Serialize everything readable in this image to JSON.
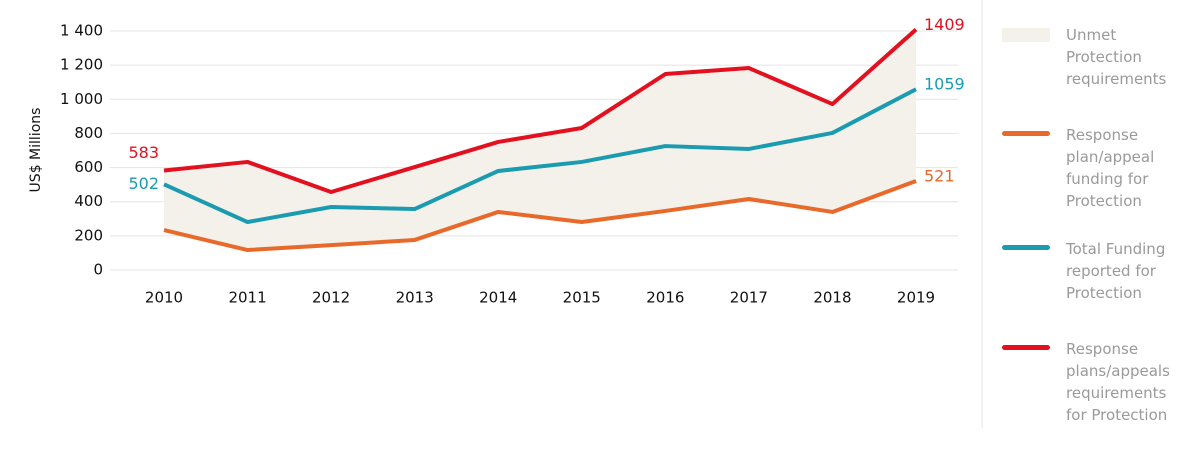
{
  "chart_data": {
    "type": "line",
    "y_label": "US$ Millions",
    "categories": [
      "2010",
      "2011",
      "2012",
      "2013",
      "2014",
      "2015",
      "2016",
      "2017",
      "2018",
      "2019"
    ],
    "area": {
      "name": "Unmet Protection requirements",
      "color": "#f4f1eb"
    },
    "series": [
      {
        "name": "Response plan/appeal funding for Protection",
        "color": "#e8692a",
        "values": [
          234,
          117,
          146,
          176,
          340,
          281,
          346,
          416,
          340,
          521
        ]
      },
      {
        "name": "Total Funding reported for Protection",
        "color": "#1b9bb0",
        "values": [
          502,
          281,
          369,
          357,
          580,
          633,
          726,
          709,
          803,
          1059
        ]
      },
      {
        "name": "Response plans/appeals requirements for Protection",
        "color": "#e3101f",
        "values": [
          583,
          633,
          457,
          603,
          750,
          832,
          1148,
          1183,
          972,
          1409
        ]
      }
    ],
    "ylim": [
      0,
      1400
    ],
    "yticks": [
      0,
      200,
      400,
      600,
      800,
      {
        "value": 1000,
        "label": "1 000"
      },
      {
        "value": 1200,
        "label": "1 200"
      },
      {
        "value": 1400,
        "label": "1 400"
      }
    ],
    "grid": true
  }
}
